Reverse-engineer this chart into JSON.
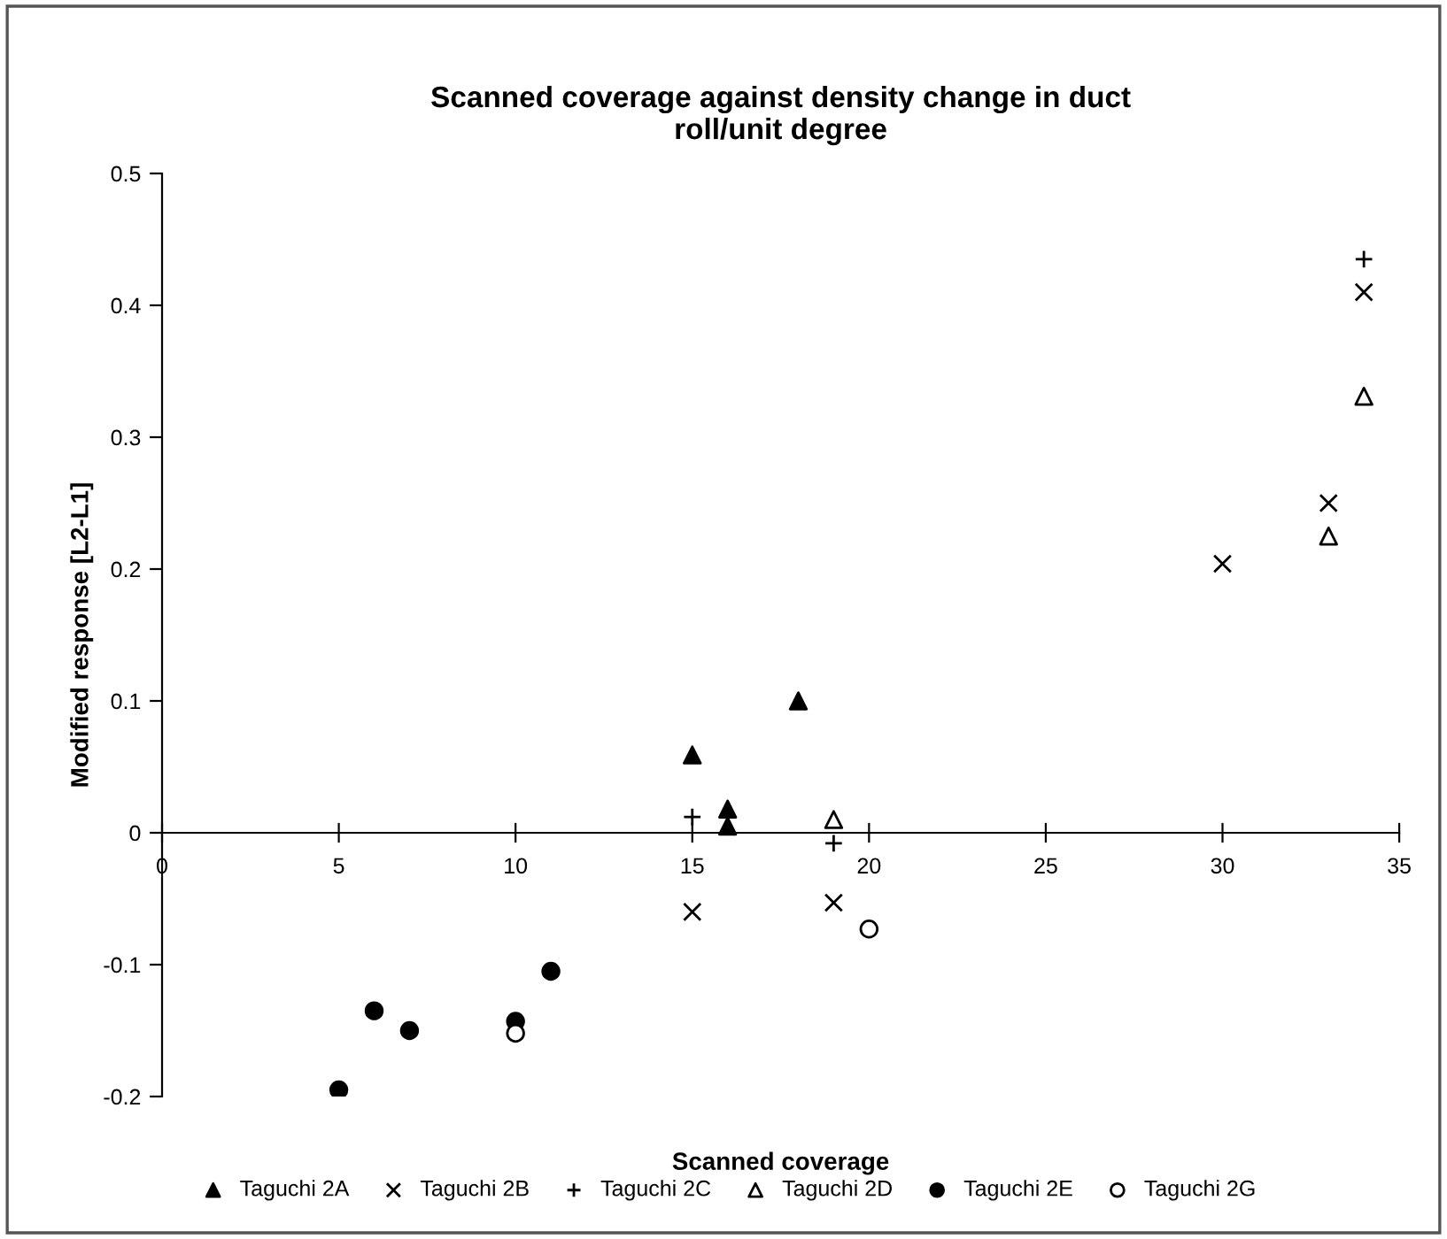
{
  "chart_data": {
    "type": "scatter",
    "title": "Scanned coverage against density change in duct\nroll/unit degree",
    "xlabel": "Scanned coverage",
    "ylabel": "Modified response [L2-L1]",
    "xlim": [
      0,
      35
    ],
    "xticks": [
      0,
      5,
      10,
      15,
      20,
      25,
      30,
      35
    ],
    "ylim": [
      -0.2,
      0.5
    ],
    "yticks": [
      -0.2,
      -0.1,
      0,
      0.1,
      0.2,
      0.3,
      0.4,
      0.5
    ],
    "grid": false,
    "legend": "bottom",
    "series": [
      {
        "name": "Taguchi 2A",
        "color": "#000000",
        "marker": "triangle",
        "x": [
          15,
          16,
          16,
          18
        ],
        "values": [
          0.059,
          0.018,
          0.005,
          0.1
        ]
      },
      {
        "name": "Taguchi 2B",
        "color": "#000000",
        "marker": "x",
        "x": [
          15,
          19,
          30,
          33,
          34
        ],
        "values": [
          -0.06,
          -0.053,
          0.204,
          0.25,
          0.41
        ]
      },
      {
        "name": "Taguchi 2C",
        "color": "#000000",
        "marker": "cross",
        "x": [
          15,
          19,
          34
        ],
        "values": [
          0.012,
          -0.008,
          0.435
        ]
      },
      {
        "name": "Taguchi 2D",
        "color": "#000000",
        "marker": "triangle-open",
        "x": [
          19,
          33,
          34
        ],
        "values": [
          0.01,
          0.225,
          0.331
        ]
      },
      {
        "name": "Taguchi 2E",
        "color": "#000000",
        "marker": "circle",
        "x": [
          5,
          6,
          7,
          10,
          11
        ],
        "values": [
          -0.195,
          -0.135,
          -0.15,
          -0.143,
          -0.105
        ]
      },
      {
        "name": "Taguchi 2G",
        "color": "#000000",
        "marker": "circle-open",
        "x": [
          10,
          20
        ],
        "values": [
          -0.152,
          -0.073
        ]
      }
    ]
  }
}
